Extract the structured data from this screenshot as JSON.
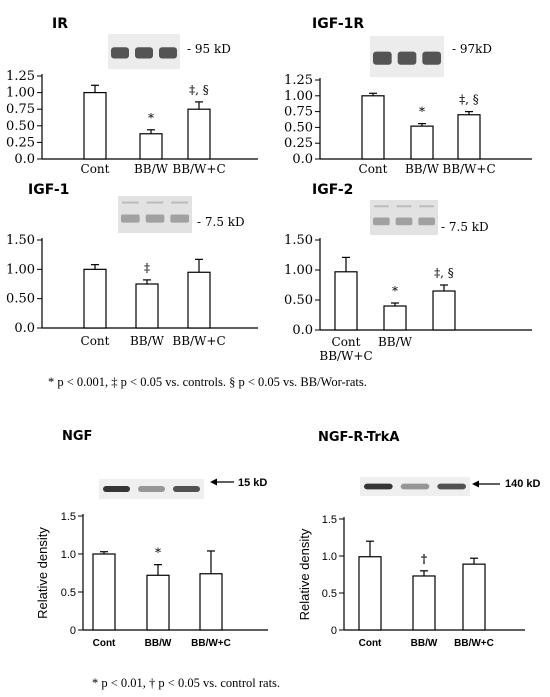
{
  "footnotes": {
    "top": "* p < 0.001, ‡ p < 0.05 vs. controls. § p < 0.05 vs. BB/Wor-rats.",
    "bottom": "* p < 0.01,  † p < 0.05 vs. control rats."
  },
  "chart_data": [
    {
      "type": "bar",
      "title": "IR",
      "blot_label": "- 95 kD",
      "categories": [
        "Cont",
        "BB/W",
        "BB/W+C"
      ],
      "values": [
        1.0,
        0.38,
        0.75
      ],
      "errors": [
        0.11,
        0.06,
        0.11
      ],
      "annotations": [
        "",
        "*",
        "‡, §"
      ],
      "ylabel": "",
      "ylim": [
        0,
        1.25
      ],
      "yticks": [
        "0.0",
        "0.25",
        "0.50",
        "0.75",
        "1.00",
        "1.25"
      ]
    },
    {
      "type": "bar",
      "title": "IGF-1R",
      "blot_label": "- 97kD",
      "categories": [
        "Cont",
        "BB/W",
        "BB/W+C"
      ],
      "values": [
        1.0,
        0.52,
        0.7
      ],
      "errors": [
        0.04,
        0.04,
        0.05
      ],
      "annotations": [
        "",
        "*",
        "‡, §"
      ],
      "ylabel": "",
      "ylim": [
        0,
        1.25
      ],
      "yticks": [
        "0.0",
        "0.25",
        "0.50",
        "0.75",
        "1.00",
        "1.25"
      ]
    },
    {
      "type": "bar",
      "title": "IGF-1",
      "blot_label": "- 7.5 kD",
      "categories": [
        "Cont",
        "BB/W",
        "BB/W+C"
      ],
      "values": [
        1.0,
        0.75,
        0.95
      ],
      "errors": [
        0.08,
        0.07,
        0.22
      ],
      "annotations": [
        "",
        "‡",
        ""
      ],
      "ylabel": "",
      "ylim": [
        0,
        1.5
      ],
      "yticks": [
        "0.0",
        "0.50",
        "1.00",
        "1.50"
      ]
    },
    {
      "type": "bar",
      "title": "IGF-2",
      "blot_label": "- 7.5 kD",
      "categories": [
        "Cont\nBB/W+C",
        "BB/W",
        ""
      ],
      "values": [
        0.97,
        0.4,
        0.65
      ],
      "errors": [
        0.24,
        0.05,
        0.1
      ],
      "annotations": [
        "",
        "*",
        "‡, §"
      ],
      "ylabel": "",
      "ylim": [
        0,
        1.5
      ],
      "yticks": [
        "0.0",
        "0.50",
        "1.00",
        "1.50"
      ]
    },
    {
      "type": "bar",
      "title": "NGF",
      "blot_label": "15 kD",
      "categories": [
        "Cont",
        "BB/W",
        "BB/W+C"
      ],
      "values": [
        1.0,
        0.72,
        0.74
      ],
      "errors": [
        0.03,
        0.14,
        0.3
      ],
      "annotations": [
        "",
        "*",
        ""
      ],
      "ylabel": "Relative density",
      "ylim": [
        0,
        1.5
      ],
      "yticks": [
        "0",
        "0.5",
        "1.0",
        "1.5"
      ]
    },
    {
      "type": "bar",
      "title": "NGF-R-TrkA",
      "blot_label": "140 kD",
      "categories": [
        "Cont",
        "BB/W",
        "BB/W+C"
      ],
      "values": [
        0.99,
        0.73,
        0.89
      ],
      "errors": [
        0.21,
        0.07,
        0.08
      ],
      "annotations": [
        "",
        "†",
        ""
      ],
      "ylabel": "Relative density",
      "ylim": [
        0,
        1.5
      ],
      "yticks": [
        "0",
        "0.5",
        "1.0",
        "1.5"
      ]
    }
  ]
}
